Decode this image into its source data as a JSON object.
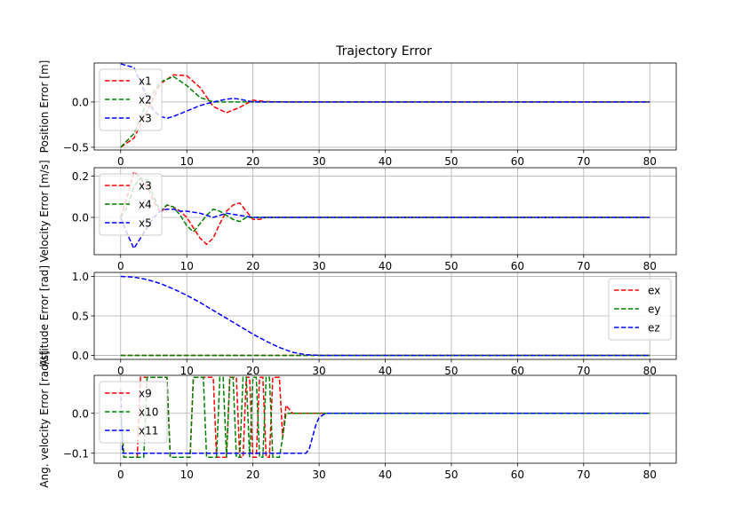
{
  "figure": {
    "title": "Trajectory Error"
  },
  "chart_data": [
    {
      "type": "line",
      "ylabel": "Position Error [m]",
      "xlim": [
        -4,
        84
      ],
      "ylim": [
        -0.53,
        0.43
      ],
      "xticks": [
        0,
        10,
        20,
        30,
        40,
        50,
        60,
        70,
        80
      ],
      "yticks": [
        -0.5,
        0.0
      ],
      "ytick_labels": [
        "−0.5",
        "0.0"
      ],
      "grid": true,
      "legend": "upper left",
      "series": [
        {
          "name": "x1",
          "color": "#ff0000",
          "x": [
            0,
            2,
            4,
            6,
            8,
            10,
            12,
            14,
            16,
            18,
            20,
            22,
            25,
            30,
            40,
            50,
            60,
            70,
            80
          ],
          "values": [
            -0.5,
            -0.4,
            -0.1,
            0.2,
            0.3,
            0.29,
            0.16,
            -0.05,
            -0.12,
            -0.06,
            0.02,
            0.005,
            0,
            0,
            0,
            0,
            0,
            0,
            0
          ]
        },
        {
          "name": "x2",
          "color": "#008000",
          "x": [
            0,
            2,
            4,
            6,
            8,
            10,
            12,
            14,
            16,
            18,
            20,
            22,
            25,
            30,
            40,
            50,
            60,
            70,
            80
          ],
          "values": [
            -0.5,
            -0.35,
            0.0,
            0.22,
            0.28,
            0.18,
            0.05,
            0.0,
            0.0,
            0.0,
            0.0,
            0.0,
            0,
            0,
            0,
            0,
            0,
            0,
            0
          ]
        },
        {
          "name": "x3",
          "color": "#0000ff",
          "x": [
            0,
            2,
            4,
            5,
            6,
            7,
            8,
            10,
            12,
            14,
            16,
            17,
            18,
            20,
            22,
            25,
            30,
            40,
            50,
            60,
            70,
            80
          ],
          "values": [
            0.42,
            0.38,
            0.05,
            -0.1,
            -0.16,
            -0.18,
            -0.16,
            -0.1,
            -0.04,
            0.0,
            0.03,
            0.04,
            0.03,
            0.0,
            0,
            0,
            0,
            0,
            0,
            0,
            0,
            0
          ]
        }
      ]
    },
    {
      "type": "line",
      "ylabel": "Velocity Error [m/s]",
      "xlim": [
        -4,
        84
      ],
      "ylim": [
        -0.18,
        0.24
      ],
      "xticks": [
        0,
        10,
        20,
        30,
        40,
        50,
        60,
        70,
        80
      ],
      "yticks": [
        0.0,
        0.2
      ],
      "ytick_labels": [
        "0.0",
        "0.2"
      ],
      "grid": true,
      "legend": "upper left",
      "series": [
        {
          "name": "x3",
          "color": "#ff0000",
          "x": [
            0,
            1,
            2,
            3,
            4,
            5,
            6,
            7,
            8,
            9,
            10,
            11,
            12,
            13,
            14,
            15,
            16,
            17,
            18,
            19,
            20,
            21,
            22,
            25,
            30,
            40,
            50,
            60,
            70,
            80
          ],
          "values": [
            0.0,
            0.1,
            0.22,
            0.19,
            0.15,
            0.08,
            0.02,
            0.06,
            0.05,
            0.03,
            0.0,
            -0.05,
            -0.1,
            -0.13,
            -0.1,
            -0.03,
            0.03,
            0.06,
            0.07,
            0.03,
            -0.01,
            -0.01,
            0.0,
            0,
            0,
            0,
            0,
            0,
            0,
            0
          ]
        },
        {
          "name": "x4",
          "color": "#008000",
          "x": [
            0,
            1,
            2,
            3,
            4,
            5,
            6,
            7,
            8,
            9,
            10,
            11,
            12,
            13,
            14,
            15,
            16,
            17,
            18,
            19,
            20,
            21,
            22,
            25,
            30,
            40,
            50,
            60,
            70,
            80
          ],
          "values": [
            0.0,
            0.05,
            0.15,
            0.19,
            0.18,
            0.1,
            0.03,
            0.06,
            0.05,
            0.01,
            -0.04,
            -0.07,
            -0.03,
            0.01,
            0.04,
            0.03,
            0.01,
            -0.01,
            -0.02,
            0.0,
            0.0,
            0.0,
            0.0,
            0,
            0,
            0,
            0,
            0,
            0,
            0
          ]
        },
        {
          "name": "x5",
          "color": "#0000ff",
          "x": [
            0,
            1,
            2,
            3,
            4,
            5,
            6,
            7,
            8,
            9,
            10,
            12,
            14,
            16,
            18,
            20,
            22,
            25,
            30,
            40,
            50,
            60,
            70,
            80
          ],
          "values": [
            0.0,
            -0.08,
            -0.15,
            -0.1,
            -0.05,
            0.0,
            0.03,
            0.04,
            0.04,
            0.03,
            0.03,
            0.02,
            0.0,
            0.02,
            0.01,
            0.0,
            0.0,
            0,
            0,
            0,
            0,
            0,
            0,
            0
          ]
        }
      ]
    },
    {
      "type": "line",
      "ylabel": "Attitude Error [rad]",
      "xlim": [
        -4,
        84
      ],
      "ylim": [
        -0.05,
        1.05
      ],
      "xticks": [
        0,
        10,
        20,
        30,
        40,
        50,
        60,
        70,
        80
      ],
      "yticks": [
        0.0,
        0.5,
        1.0
      ],
      "ytick_labels": [
        "0.0",
        "0.5",
        "1.0"
      ],
      "grid": true,
      "legend": "upper right",
      "series": [
        {
          "name": "ex",
          "color": "#ff0000",
          "x": [
            0,
            80
          ],
          "values": [
            0,
            0
          ]
        },
        {
          "name": "ey",
          "color": "#008000",
          "x": [
            0,
            80
          ],
          "values": [
            0,
            0
          ]
        },
        {
          "name": "ez",
          "color": "#0000ff",
          "x": [
            0,
            2,
            4,
            6,
            8,
            10,
            12,
            14,
            16,
            18,
            20,
            22,
            24,
            26,
            28,
            30,
            35,
            40,
            50,
            60,
            70,
            80
          ],
          "values": [
            1.0,
            0.99,
            0.96,
            0.91,
            0.84,
            0.76,
            0.67,
            0.57,
            0.47,
            0.37,
            0.27,
            0.18,
            0.1,
            0.04,
            0.01,
            0.0,
            0,
            0,
            0,
            0,
            0,
            0
          ]
        }
      ]
    },
    {
      "type": "line",
      "ylabel": "Ang. velocity Error [rad/s]",
      "xlim": [
        -4,
        84
      ],
      "ylim": [
        -0.125,
        0.095
      ],
      "xticks": [
        0,
        10,
        20,
        30,
        40,
        50,
        60,
        70,
        80
      ],
      "yticks": [
        -0.1,
        0.0
      ],
      "ytick_labels": [
        "−0.1",
        "0.0"
      ],
      "grid": true,
      "legend": "upper left",
      "series": [
        {
          "name": "x9",
          "color": "#ff0000",
          "x": [
            0,
            0.5,
            1,
            2,
            2.5,
            3,
            3.5,
            6,
            6.5,
            7,
            7.5,
            8,
            8.5,
            10,
            10.5,
            11,
            11.5,
            12,
            12.5,
            14,
            14.5,
            15,
            15.5,
            16,
            16.5,
            17,
            17.5,
            18,
            18.5,
            19,
            19.5,
            20,
            20.5,
            21,
            21.5,
            22,
            22.5,
            23,
            23.5,
            24,
            24.5,
            25,
            25.5,
            26,
            27,
            28,
            30,
            40,
            50,
            60,
            70,
            80
          ],
          "values": [
            0.0,
            -0.11,
            -0.11,
            -0.11,
            -0.11,
            0.09,
            0.09,
            0.09,
            0.09,
            0.09,
            -0.11,
            -0.11,
            -0.11,
            -0.11,
            -0.11,
            0.09,
            0.09,
            0.09,
            0.09,
            0.09,
            -0.11,
            -0.11,
            -0.11,
            -0.11,
            0.09,
            0.09,
            0.09,
            -0.11,
            -0.11,
            0.09,
            0.09,
            -0.11,
            -0.11,
            0.09,
            0.09,
            -0.11,
            -0.11,
            0.09,
            0.09,
            0.09,
            -0.06,
            0.02,
            0.01,
            0.0,
            0.0,
            0.0,
            0,
            0,
            0,
            0,
            0,
            0
          ]
        },
        {
          "name": "x10",
          "color": "#008000",
          "x": [
            0,
            0.5,
            1,
            3,
            3.5,
            4,
            5,
            5.5,
            6,
            7,
            7.5,
            8,
            10,
            10.5,
            11,
            12,
            12.5,
            13,
            14,
            14.5,
            15,
            15.5,
            16,
            16.5,
            17,
            17.5,
            18,
            18.5,
            19,
            19.5,
            20,
            20.5,
            21,
            21.5,
            22,
            22.5,
            23,
            23.5,
            24,
            24.5,
            25,
            26,
            28,
            30,
            40,
            50,
            60,
            70,
            80
          ],
          "values": [
            0.0,
            -0.11,
            -0.11,
            -0.11,
            -0.11,
            0.09,
            0.09,
            0.09,
            0.09,
            0.09,
            -0.11,
            -0.11,
            -0.11,
            -0.11,
            0.09,
            0.09,
            0.09,
            -0.11,
            -0.11,
            -0.11,
            0.09,
            0.09,
            -0.11,
            0.09,
            0.09,
            -0.11,
            -0.11,
            0.09,
            0.09,
            -0.11,
            0.09,
            0.09,
            -0.11,
            -0.11,
            0.09,
            0.09,
            -0.11,
            -0.11,
            -0.11,
            -0.06,
            0.0,
            0.0,
            0.0,
            0,
            0,
            0,
            0,
            0,
            0
          ]
        },
        {
          "name": "x11",
          "color": "#0000ff",
          "x": [
            0,
            0.3,
            1,
            28,
            28.5,
            29,
            29.5,
            30,
            31,
            35,
            40,
            50,
            60,
            70,
            80
          ],
          "values": [
            0.06,
            -0.1,
            -0.1,
            -0.1,
            -0.09,
            -0.06,
            -0.03,
            -0.01,
            0.0,
            0.0,
            0,
            0,
            0,
            0,
            0
          ]
        }
      ]
    }
  ]
}
